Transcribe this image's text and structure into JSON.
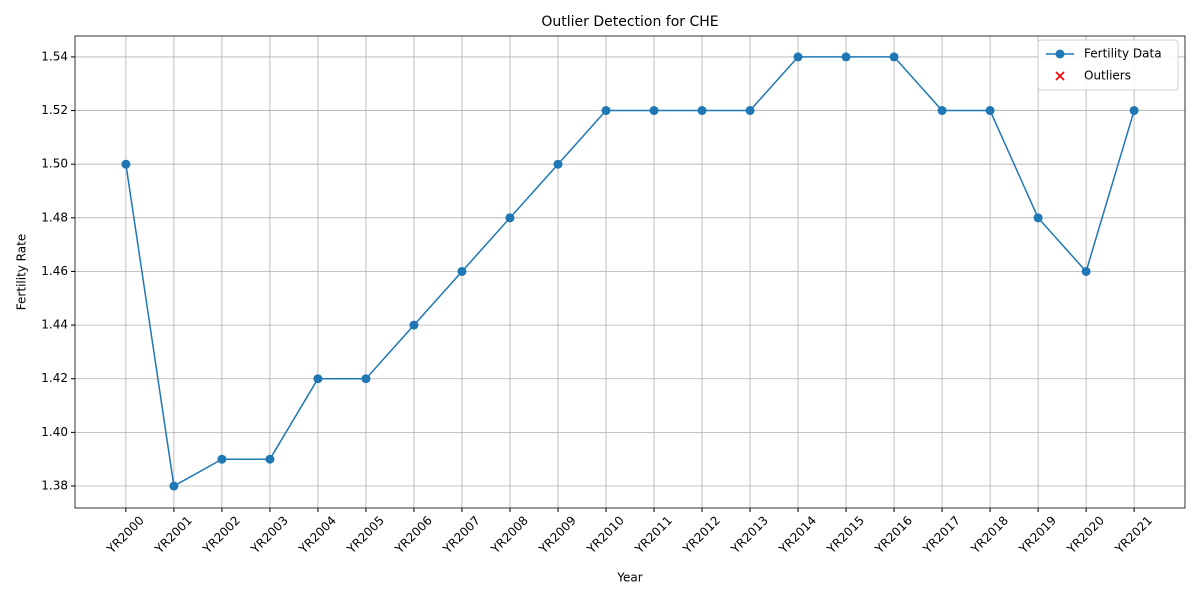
{
  "chart_data": {
    "type": "line",
    "title": "Outlier Detection for CHE",
    "xlabel": "Year",
    "ylabel": "Fertility Rate",
    "categories": [
      "YR2000",
      "YR2001",
      "YR2002",
      "YR2003",
      "YR2004",
      "YR2005",
      "YR2006",
      "YR2007",
      "YR2008",
      "YR2009",
      "YR2010",
      "YR2011",
      "YR2012",
      "YR2013",
      "YR2014",
      "YR2015",
      "YR2016",
      "YR2017",
      "YR2018",
      "YR2019",
      "YR2020",
      "YR2021"
    ],
    "series": [
      {
        "name": "Fertility Data",
        "color": "#1f77b4",
        "marker": "o",
        "values": [
          1.5,
          1.38,
          1.39,
          1.39,
          1.42,
          1.42,
          1.44,
          1.46,
          1.48,
          1.5,
          1.52,
          1.52,
          1.52,
          1.52,
          1.54,
          1.54,
          1.54,
          1.52,
          1.52,
          1.48,
          1.46,
          1.52
        ]
      },
      {
        "name": "Outliers",
        "color": "#ff0000",
        "marker": "x",
        "values": [
          null,
          null,
          null,
          null,
          null,
          null,
          null,
          null,
          null,
          null,
          null,
          null,
          null,
          null,
          null,
          null,
          null,
          null,
          null,
          null,
          null,
          null
        ]
      }
    ],
    "ylim": [
      1.3718,
      1.5478
    ],
    "yticks": [
      1.38,
      {
        "value": 1.4,
        "label": "1.40"
      },
      1.42,
      1.44,
      1.46,
      1.48,
      {
        "value": 1.5,
        "label": "1.50"
      },
      1.52,
      1.54
    ],
    "grid": true,
    "legend": "upper right"
  }
}
